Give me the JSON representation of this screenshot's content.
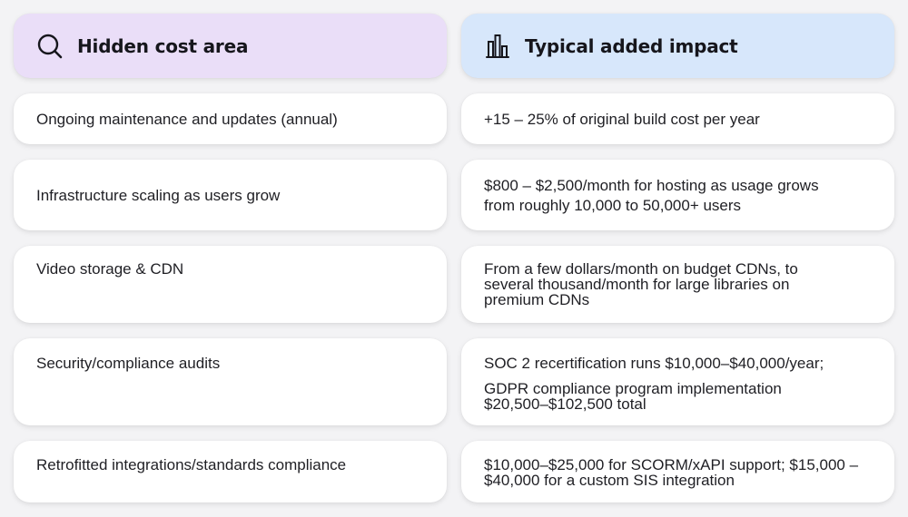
{
  "headers": {
    "left_title": "Hidden cost area",
    "left_icon": "search-icon",
    "right_title": "Typical added impact",
    "right_icon": "bar-chart-icon"
  },
  "rows": [
    {
      "area": "Ongoing maintenance and updates (annual)",
      "impact": [
        "+15 – 25% of original build cost per year"
      ]
    },
    {
      "area": "Infrastructure scaling as users grow",
      "impact": [
        "$800 – $2,500/month for hosting as usage grows",
        "from roughly 10,000 to 50,000+ users"
      ]
    },
    {
      "area": "Video storage & CDN",
      "impact": [
        "From a few dollars/month on budget CDNs, to",
        "several thousand/month for large libraries on",
        "premium CDNs"
      ]
    },
    {
      "area": "Security/compliance audits",
      "impact": [
        "SOC 2 recertification runs $10,000–$40,000/year;",
        "GDPR compliance program implementation",
        "$20,500–$102,500 total"
      ]
    },
    {
      "area": "Retrofitted integrations/standards compliance",
      "impact": [
        "$10,000–$25,000 for SCORM/xAPI support; $15,000 –",
        "$40,000 for a custom SIS integration"
      ]
    }
  ],
  "colors": {
    "background": "#f3f3f5",
    "left_header": "#eadef8",
    "right_header": "#d7e7fb",
    "card": "#ffffff",
    "text": "#1f1f24"
  }
}
